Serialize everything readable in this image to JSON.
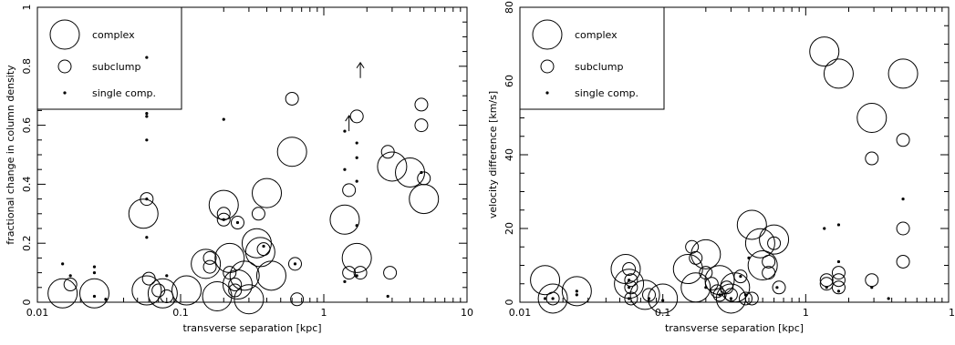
{
  "chart_data": [
    {
      "type": "scatter",
      "xlabel": "transverse separation [kpc]",
      "ylabel": "fractional change in column density",
      "xscale": "log",
      "xlim": [
        0.01,
        10
      ],
      "ylim": [
        0,
        1
      ],
      "xticks": [
        0.01,
        0.1,
        1,
        10
      ],
      "xtick_labels": [
        "0.01",
        "0.1",
        "1",
        "10"
      ],
      "yticks": [
        0,
        0.2,
        0.4,
        0.6,
        0.8,
        1
      ],
      "ytick_labels": [
        "0",
        "0.2",
        "0.4",
        "0.6",
        "0.8",
        "1"
      ],
      "grid": false,
      "legend": {
        "position": "top-left",
        "entries": [
          {
            "label": "complex",
            "marker": "large-circle"
          },
          {
            "label": "subclump",
            "marker": "small-circle"
          },
          {
            "label": "single comp.",
            "marker": "dot"
          }
        ]
      },
      "series": [
        {
          "name": "complex",
          "points": [
            [
              0.015,
              0.03
            ],
            [
              0.025,
              0.03
            ],
            [
              0.055,
              0.3
            ],
            [
              0.058,
              0.04
            ],
            [
              0.075,
              0.03
            ],
            [
              0.11,
              0.04
            ],
            [
              0.15,
              0.13
            ],
            [
              0.18,
              0.02
            ],
            [
              0.2,
              0.33
            ],
            [
              0.22,
              0.15
            ],
            [
              0.25,
              0.06
            ],
            [
              0.28,
              0.09
            ],
            [
              0.3,
              0.01
            ],
            [
              0.34,
              0.2
            ],
            [
              0.36,
              0.17
            ],
            [
              0.4,
              0.37
            ],
            [
              0.43,
              0.09
            ],
            [
              0.6,
              0.51
            ],
            [
              1.4,
              0.28
            ],
            [
              1.7,
              0.15
            ],
            [
              3.0,
              0.46
            ],
            [
              4.0,
              0.44
            ],
            [
              5.0,
              0.35
            ]
          ]
        },
        {
          "name": "subclump",
          "points": [
            [
              0.017,
              0.06
            ],
            [
              0.058,
              0.35
            ],
            [
              0.06,
              0.08
            ],
            [
              0.07,
              0.04
            ],
            [
              0.08,
              0.02
            ],
            [
              0.16,
              0.15
            ],
            [
              0.16,
              0.12
            ],
            [
              0.2,
              0.28
            ],
            [
              0.2,
              0.3
            ],
            [
              0.22,
              0.1
            ],
            [
              0.24,
              0.06
            ],
            [
              0.24,
              0.04
            ],
            [
              0.25,
              0.27
            ],
            [
              0.35,
              0.3
            ],
            [
              0.38,
              0.18
            ],
            [
              0.6,
              0.69
            ],
            [
              0.63,
              0.13
            ],
            [
              0.65,
              0.01
            ],
            [
              1.5,
              0.1
            ],
            [
              1.5,
              0.38
            ],
            [
              1.7,
              0.63
            ],
            [
              1.8,
              0.1
            ],
            [
              2.8,
              0.51
            ],
            [
              2.9,
              0.1
            ],
            [
              4.8,
              0.67
            ],
            [
              4.8,
              0.6
            ],
            [
              5.0,
              0.42
            ]
          ]
        },
        {
          "name": "single comp.",
          "points": [
            [
              0.015,
              0.13
            ],
            [
              0.017,
              0.09
            ],
            [
              0.025,
              0.12
            ],
            [
              0.025,
              0.1
            ],
            [
              0.025,
              0.02
            ],
            [
              0.03,
              0.01
            ],
            [
              0.058,
              0.83
            ],
            [
              0.058,
              0.64
            ],
            [
              0.058,
              0.63
            ],
            [
              0.058,
              0.55
            ],
            [
              0.058,
              0.35
            ],
            [
              0.058,
              0.22
            ],
            [
              0.08,
              0.09
            ],
            [
              0.2,
              0.62
            ],
            [
              0.2,
              0.28
            ],
            [
              0.25,
              0.27
            ],
            [
              0.38,
              0.19
            ],
            [
              0.63,
              0.13
            ],
            [
              1.4,
              0.58
            ],
            [
              1.4,
              0.45
            ],
            [
              1.4,
              0.07
            ],
            [
              1.7,
              0.54
            ],
            [
              1.7,
              0.49
            ],
            [
              1.7,
              0.41
            ],
            [
              1.7,
              0.26
            ],
            [
              1.7,
              0.09
            ],
            [
              2.8,
              0.02
            ],
            [
              4.8,
              0.44
            ]
          ]
        },
        {
          "name": "lower limits",
          "marker": "up-arrow",
          "points": [
            [
              1.5,
              0.58
            ],
            [
              1.8,
              0.76
            ]
          ]
        }
      ]
    },
    {
      "type": "scatter",
      "xlabel": "transverse separation [kpc]",
      "ylabel": "velocity difference [km/s]",
      "xscale": "log",
      "xlim": [
        0.01,
        10
      ],
      "ylim": [
        0,
        80
      ],
      "xticks": [
        0.01,
        0.1,
        1,
        10
      ],
      "xtick_labels": [
        "0.01",
        "0.1",
        "1",
        "10"
      ],
      "yticks": [
        0,
        20,
        40,
        60,
        80
      ],
      "ytick_labels": [
        "0",
        "20",
        "40",
        "60",
        "80"
      ],
      "grid": false,
      "legend": {
        "position": "top-left",
        "entries": [
          {
            "label": "complex",
            "marker": "large-circle"
          },
          {
            "label": "subclump",
            "marker": "small-circle"
          },
          {
            "label": "single comp.",
            "marker": "dot"
          }
        ]
      },
      "series": [
        {
          "name": "complex",
          "points": [
            [
              0.015,
              6
            ],
            [
              0.017,
              1
            ],
            [
              0.025,
              3
            ],
            [
              0.055,
              9
            ],
            [
              0.058,
              5
            ],
            [
              0.075,
              2
            ],
            [
              0.1,
              1
            ],
            [
              0.15,
              9
            ],
            [
              0.17,
              4
            ],
            [
              0.2,
              13
            ],
            [
              0.25,
              6
            ],
            [
              0.3,
              1
            ],
            [
              0.32,
              4
            ],
            [
              0.42,
              21
            ],
            [
              0.48,
              16
            ],
            [
              0.5,
              10
            ],
            [
              0.6,
              17
            ],
            [
              1.35,
              68
            ],
            [
              1.7,
              62
            ],
            [
              2.9,
              50
            ],
            [
              4.8,
              62
            ]
          ]
        },
        {
          "name": "subclump",
          "points": [
            [
              0.017,
              1
            ],
            [
              0.058,
              9
            ],
            [
              0.06,
              6
            ],
            [
              0.06,
              4
            ],
            [
              0.06,
              1
            ],
            [
              0.08,
              2
            ],
            [
              0.16,
              15
            ],
            [
              0.17,
              12
            ],
            [
              0.2,
              8
            ],
            [
              0.22,
              5
            ],
            [
              0.24,
              3
            ],
            [
              0.25,
              2
            ],
            [
              0.28,
              4
            ],
            [
              0.3,
              2
            ],
            [
              0.35,
              7
            ],
            [
              0.38,
              1
            ],
            [
              0.42,
              1
            ],
            [
              0.55,
              11
            ],
            [
              0.55,
              8
            ],
            [
              0.6,
              16
            ],
            [
              0.65,
              4
            ],
            [
              1.4,
              6
            ],
            [
              1.4,
              5
            ],
            [
              1.7,
              8
            ],
            [
              1.7,
              6
            ],
            [
              1.7,
              4
            ],
            [
              2.9,
              39
            ],
            [
              2.9,
              6
            ],
            [
              4.8,
              44
            ],
            [
              4.8,
              20
            ],
            [
              4.8,
              11
            ]
          ]
        },
        {
          "name": "single comp.",
          "points": [
            [
              0.015,
              1
            ],
            [
              0.017,
              1
            ],
            [
              0.025,
              3
            ],
            [
              0.025,
              2
            ],
            [
              0.058,
              6
            ],
            [
              0.058,
              4
            ],
            [
              0.058,
              1
            ],
            [
              0.08,
              1
            ],
            [
              0.1,
              0.5
            ],
            [
              0.2,
              4
            ],
            [
              0.25,
              2
            ],
            [
              0.3,
              1
            ],
            [
              0.35,
              7
            ],
            [
              0.38,
              2
            ],
            [
              0.4,
              12
            ],
            [
              0.63,
              4
            ],
            [
              1.35,
              20
            ],
            [
              1.4,
              4
            ],
            [
              1.7,
              21
            ],
            [
              1.7,
              11
            ],
            [
              1.7,
              3
            ],
            [
              2.9,
              4
            ],
            [
              3.8,
              1
            ],
            [
              4.8,
              28
            ]
          ]
        }
      ]
    }
  ]
}
